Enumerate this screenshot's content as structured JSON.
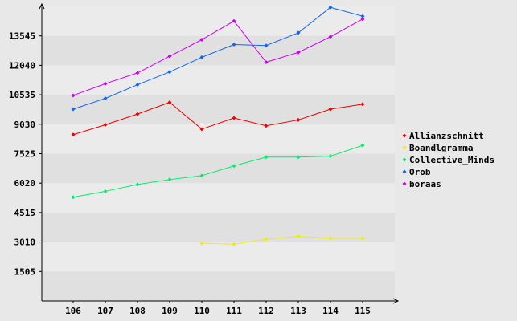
{
  "chart_data": {
    "type": "line",
    "title": "",
    "xlabel": "",
    "ylabel": "",
    "categories": [
      "106",
      "107",
      "108",
      "109",
      "110",
      "111",
      "112",
      "113",
      "114",
      "115"
    ],
    "yticks": [
      "1505",
      "3010",
      "4515",
      "6020",
      "7525",
      "9030",
      "10535",
      "12040",
      "13545"
    ],
    "ylim": [
      0,
      15050
    ],
    "grid": "horizontal bands",
    "legend_position": "right",
    "series": [
      {
        "name": "Allianzschnitt",
        "color": "#ee0000",
        "values": [
          8500,
          9000,
          9550,
          10150,
          8780,
          9350,
          8950,
          9250,
          9800,
          10050
        ]
      },
      {
        "name": "Boandlgramma",
        "color": "#eeee00",
        "values": [
          null,
          null,
          null,
          null,
          2950,
          2900,
          3150,
          3300,
          3200,
          3200
        ]
      },
      {
        "name": "Collective_Minds",
        "color": "#00ee66",
        "values": [
          5300,
          5600,
          5950,
          6200,
          6400,
          6900,
          7350,
          7350,
          7400,
          7950
        ]
      },
      {
        "name": "Orob",
        "color": "#1166ee",
        "values": [
          9800,
          10350,
          11050,
          11700,
          12450,
          13100,
          13050,
          13700,
          15000,
          14550
        ]
      },
      {
        "name": "boraas",
        "color": "#cc00ee",
        "values": [
          10500,
          11100,
          11650,
          12500,
          13350,
          14300,
          12200,
          12700,
          13500,
          14400
        ]
      }
    ]
  }
}
